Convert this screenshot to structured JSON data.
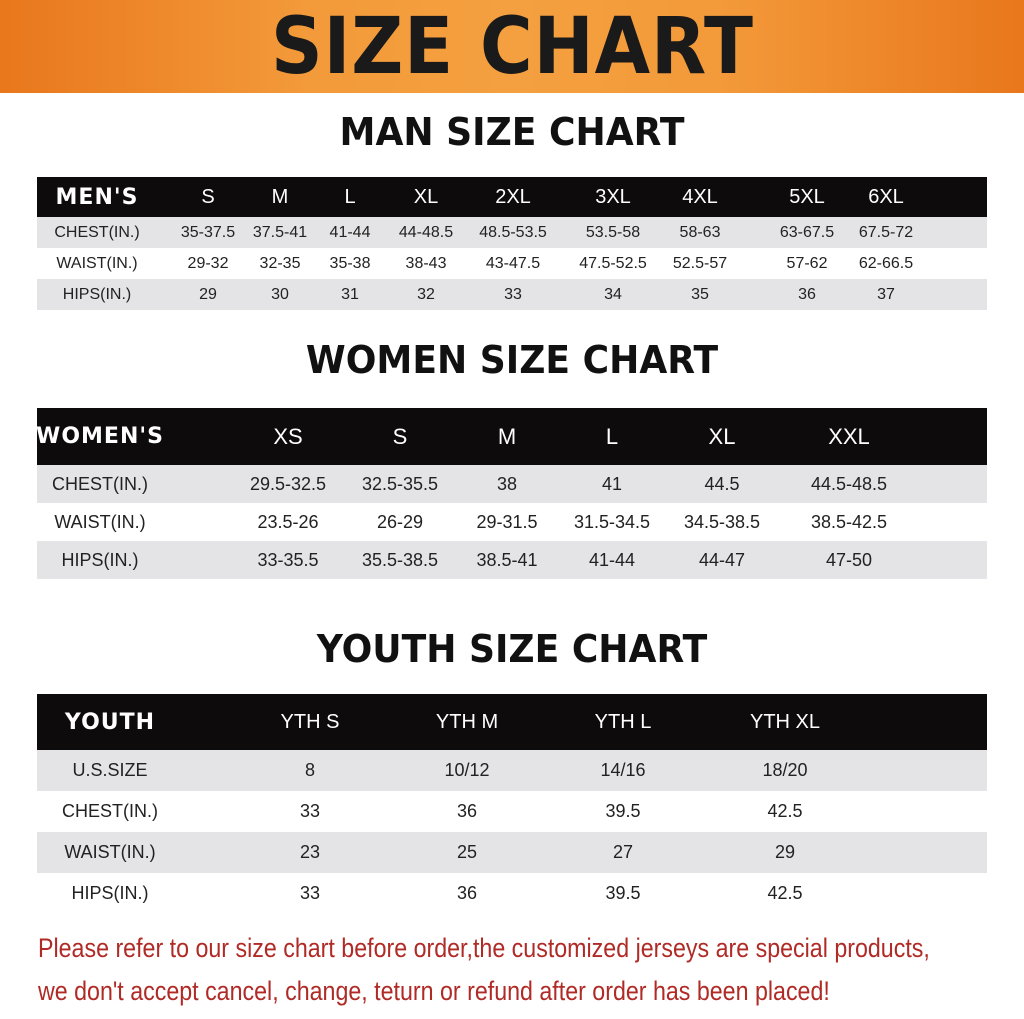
{
  "banner_title": "SIZE CHART",
  "men": {
    "title": "MAN SIZE CHART",
    "header": [
      "MEN'S",
      "S",
      "M",
      "L",
      "XL",
      "2XL",
      "3XL",
      "4XL",
      "5XL",
      "6XL"
    ],
    "rows": [
      [
        "CHEST(IN.)",
        "35-37.5",
        "37.5-41",
        "41-44",
        "44-48.5",
        "48.5-53.5",
        "53.5-58",
        "58-63",
        "63-67.5",
        "67.5-72"
      ],
      [
        "WAIST(IN.)",
        "29-32",
        "32-35",
        "35-38",
        "38-43",
        "43-47.5",
        "47.5-52.5",
        "52.5-57",
        "57-62",
        "62-66.5"
      ],
      [
        "HIPS(IN.)",
        "29",
        "30",
        "31",
        "32",
        "33",
        "34",
        "35",
        "36",
        "37"
      ]
    ]
  },
  "women": {
    "title": "WOMEN SIZE CHART",
    "header": [
      "WOMEN'S",
      "XS",
      "S",
      "M",
      "L",
      "XL",
      "XXL"
    ],
    "rows": [
      [
        "CHEST(IN.)",
        "29.5-32.5",
        "32.5-35.5",
        "38",
        "41",
        "44.5",
        "44.5-48.5"
      ],
      [
        "WAIST(IN.)",
        "23.5-26",
        "26-29",
        "29-31.5",
        "31.5-34.5",
        "34.5-38.5",
        "38.5-42.5"
      ],
      [
        "HIPS(IN.)",
        "33-35.5",
        "35.5-38.5",
        "38.5-41",
        "41-44",
        "44-47",
        "47-50"
      ]
    ]
  },
  "youth": {
    "title": "YOUTH SIZE CHART",
    "header": [
      "YOUTH",
      "YTH S",
      "YTH M",
      "YTH L",
      "YTH XL"
    ],
    "rows": [
      [
        "U.S.SIZE",
        "8",
        "10/12",
        "14/16",
        "18/20"
      ],
      [
        "CHEST(IN.)",
        "33",
        "36",
        "39.5",
        "42.5"
      ],
      [
        "WAIST(IN.)",
        "23",
        "25",
        "27",
        "29"
      ],
      [
        "HIPS(IN.)",
        "33",
        "36",
        "39.5",
        "42.5"
      ]
    ]
  },
  "notice": [
    "Please refer to our size chart before order,the customized jerseys are special products,",
    "we don't accept cancel, change, teturn or refund after order has been placed!"
  ],
  "colors": {
    "banner": "#f39a3a",
    "header_row": "#0d0b0b",
    "stripe": "#e4e4e6",
    "notice": "#b02a26"
  }
}
